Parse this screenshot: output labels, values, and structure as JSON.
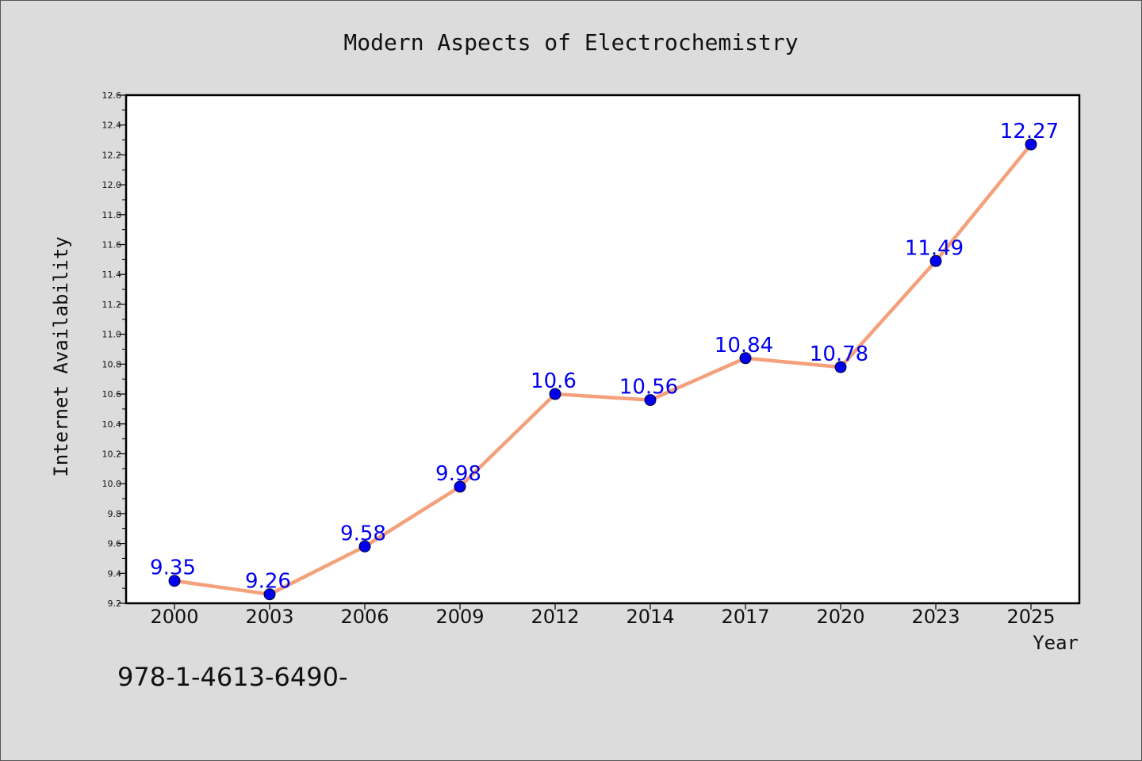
{
  "chart_data": {
    "type": "line",
    "title": "Modern Aspects of Electrochemistry",
    "xlabel": "Year",
    "ylabel": "Internet Availability",
    "categories": [
      "2000",
      "2003",
      "2006",
      "2009",
      "2012",
      "2014",
      "2017",
      "2020",
      "2023",
      "2025"
    ],
    "values": [
      9.35,
      9.26,
      9.58,
      9.98,
      10.6,
      10.56,
      10.84,
      10.78,
      11.49,
      12.27
    ],
    "data_labels": [
      "9.35",
      "9.26",
      "9.58",
      "9.98",
      "10.6",
      "10.56",
      "10.84",
      "10.78",
      "11.49",
      "12.27"
    ],
    "ylim": [
      9.2,
      12.6
    ],
    "yticks": [
      "9.2",
      "9.4",
      "9.6",
      "9.8",
      "10.0",
      "10.2",
      "10.4",
      "10.6",
      "10.8",
      "11.0",
      "11.2",
      "11.4",
      "11.6",
      "11.8",
      "12.0",
      "12.2",
      "12.4",
      "12.6"
    ],
    "grid": false,
    "line_color": "#f4a07a",
    "marker_color": "#0000ee",
    "label_color": "#0000ee",
    "background": "#dcdcdc",
    "plot_background": "#ffffff"
  },
  "footer_text": "978-1-4613-6490-"
}
